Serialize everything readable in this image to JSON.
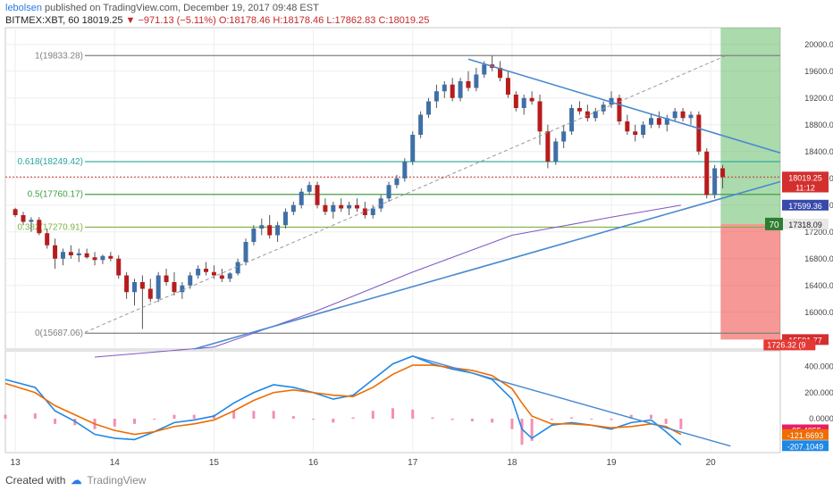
{
  "header": {
    "author": "lebolsen",
    "published": "published on TradingView.com, December 19, 2017 09:48 EST",
    "symbol": "BITMEX:XBT, 60",
    "last": "18019.25",
    "change_arrow": "▼",
    "change": "−971.13 (−5.11%)",
    "open": "O:18178.46",
    "high": "H:18178.46",
    "low": "L:17862.83",
    "close": "C:18019.25"
  },
  "footer": {
    "created_with": "Created with",
    "brand": "TradingView"
  },
  "chart_data": {
    "type": "candlestick",
    "symbol": "BITMEX:XBT",
    "interval": "60",
    "x_tick_labels": [
      "13",
      "14",
      "15",
      "16",
      "17",
      "18",
      "19",
      "20"
    ],
    "y_ticks": [
      20000,
      19600,
      19200,
      18800,
      18400,
      18000,
      17600,
      17200,
      16800,
      16400,
      16000
    ],
    "y_tick_labels": [
      "20000.00",
      "19600.00",
      "19200.00",
      "18800.00",
      "18400.00",
      "18000.00",
      "17600.00",
      "17200.00",
      "16800.00",
      "16400.00",
      "16000.00"
    ],
    "ylim": [
      15450,
      20250
    ],
    "x_range_days": [
      12.9,
      20.7
    ],
    "candles": [
      [
        13.0,
        17540,
        17560,
        17420,
        17450
      ],
      [
        13.08,
        17450,
        17500,
        17300,
        17350
      ],
      [
        13.16,
        17350,
        17420,
        17200,
        17380
      ],
      [
        13.24,
        17380,
        17420,
        17150,
        17180
      ],
      [
        13.32,
        17180,
        17250,
        16950,
        17000
      ],
      [
        13.4,
        17000,
        17100,
        16650,
        16800
      ],
      [
        13.48,
        16800,
        16950,
        16700,
        16900
      ],
      [
        13.56,
        16900,
        17000,
        16800,
        16850
      ],
      [
        13.64,
        16850,
        16950,
        16750,
        16880
      ],
      [
        13.72,
        16880,
        16950,
        16800,
        16820
      ],
      [
        13.8,
        16820,
        16900,
        16700,
        16780
      ],
      [
        13.88,
        16780,
        16860,
        16720,
        16840
      ],
      [
        13.96,
        16840,
        16900,
        16760,
        16800
      ],
      [
        14.04,
        16800,
        16850,
        16500,
        16550
      ],
      [
        14.12,
        16550,
        16600,
        16200,
        16300
      ],
      [
        14.2,
        16300,
        16500,
        16100,
        16450
      ],
      [
        14.28,
        16450,
        16550,
        15750,
        16350
      ],
      [
        14.36,
        16350,
        16500,
        16150,
        16200
      ],
      [
        14.44,
        16200,
        16600,
        16150,
        16550
      ],
      [
        14.52,
        16550,
        16650,
        16400,
        16450
      ],
      [
        14.6,
        16450,
        16600,
        16250,
        16300
      ],
      [
        14.68,
        16300,
        16450,
        16200,
        16400
      ],
      [
        14.76,
        16400,
        16600,
        16350,
        16550
      ],
      [
        14.84,
        16550,
        16700,
        16500,
        16650
      ],
      [
        14.92,
        16650,
        16750,
        16550,
        16600
      ],
      [
        15.0,
        16600,
        16700,
        16500,
        16550
      ],
      [
        15.08,
        16550,
        16650,
        16450,
        16500
      ],
      [
        15.16,
        16500,
        16600,
        16450,
        16580
      ],
      [
        15.24,
        16580,
        16800,
        16550,
        16750
      ],
      [
        15.32,
        16750,
        17100,
        16700,
        17050
      ],
      [
        15.4,
        17050,
        17300,
        17000,
        17250
      ],
      [
        15.48,
        17250,
        17400,
        17150,
        17300
      ],
      [
        15.56,
        17300,
        17450,
        17100,
        17150
      ],
      [
        15.64,
        17150,
        17350,
        17050,
        17300
      ],
      [
        15.72,
        17300,
        17550,
        17250,
        17500
      ],
      [
        15.8,
        17500,
        17650,
        17450,
        17600
      ],
      [
        15.88,
        17600,
        17850,
        17550,
        17800
      ],
      [
        15.96,
        17800,
        17950,
        17750,
        17900
      ],
      [
        16.04,
        17900,
        17950,
        17550,
        17600
      ],
      [
        16.12,
        17600,
        17700,
        17450,
        17500
      ],
      [
        16.2,
        17500,
        17650,
        17400,
        17600
      ],
      [
        16.28,
        17600,
        17700,
        17500,
        17550
      ],
      [
        16.36,
        17550,
        17650,
        17450,
        17600
      ],
      [
        16.44,
        17600,
        17700,
        17500,
        17550
      ],
      [
        16.52,
        17550,
        17650,
        17400,
        17450
      ],
      [
        16.6,
        17450,
        17600,
        17400,
        17550
      ],
      [
        16.68,
        17550,
        17750,
        17500,
        17700
      ],
      [
        16.76,
        17700,
        17950,
        17650,
        17900
      ],
      [
        16.84,
        17900,
        18050,
        17850,
        18000
      ],
      [
        16.92,
        18000,
        18300,
        17950,
        18250
      ],
      [
        17.0,
        18250,
        18700,
        18200,
        18650
      ],
      [
        17.08,
        18650,
        19000,
        18600,
        18950
      ],
      [
        17.16,
        18950,
        19200,
        18900,
        19150
      ],
      [
        17.24,
        19150,
        19400,
        19050,
        19300
      ],
      [
        17.32,
        19300,
        19450,
        19200,
        19400
      ],
      [
        17.4,
        19400,
        19500,
        19150,
        19200
      ],
      [
        17.48,
        19200,
        19500,
        19150,
        19450
      ],
      [
        17.56,
        19450,
        19600,
        19300,
        19350
      ],
      [
        17.64,
        19350,
        19650,
        19300,
        19550
      ],
      [
        17.72,
        19550,
        19750,
        19500,
        19700
      ],
      [
        17.8,
        19700,
        19830,
        19600,
        19650
      ],
      [
        17.88,
        19650,
        19750,
        19450,
        19500
      ],
      [
        17.96,
        19500,
        19600,
        19200,
        19250
      ],
      [
        18.04,
        19250,
        19300,
        19000,
        19050
      ],
      [
        18.12,
        19050,
        19250,
        18950,
        19200
      ],
      [
        18.2,
        19200,
        19300,
        19100,
        19150
      ],
      [
        18.28,
        19150,
        19250,
        18500,
        18700
      ],
      [
        18.36,
        18700,
        18800,
        18150,
        18250
      ],
      [
        18.44,
        18250,
        18600,
        18200,
        18550
      ],
      [
        18.52,
        18550,
        18800,
        18450,
        18700
      ],
      [
        18.6,
        18700,
        19100,
        18650,
        19050
      ],
      [
        18.68,
        19050,
        19150,
        18950,
        19000
      ],
      [
        18.76,
        19000,
        19100,
        18850,
        18900
      ],
      [
        18.84,
        18900,
        19050,
        18850,
        19000
      ],
      [
        18.92,
        19000,
        19150,
        18950,
        19100
      ],
      [
        19.0,
        19100,
        19300,
        19050,
        19200
      ],
      [
        19.08,
        19200,
        19250,
        18800,
        18850
      ],
      [
        19.16,
        18850,
        18950,
        18650,
        18700
      ],
      [
        19.24,
        18700,
        18800,
        18550,
        18650
      ],
      [
        19.32,
        18650,
        18850,
        18600,
        18800
      ],
      [
        19.4,
        18800,
        18950,
        18750,
        18900
      ],
      [
        19.48,
        18900,
        19000,
        18750,
        18800
      ],
      [
        19.56,
        18800,
        18950,
        18700,
        18900
      ],
      [
        19.64,
        18900,
        19050,
        18850,
        19000
      ],
      [
        19.72,
        19000,
        19050,
        18850,
        18900
      ],
      [
        19.8,
        18900,
        19000,
        18800,
        18950
      ],
      [
        19.88,
        18950,
        19000,
        18350,
        18400
      ],
      [
        19.96,
        18400,
        18450,
        17700,
        17750
      ],
      [
        20.04,
        17750,
        18200,
        17700,
        18150
      ],
      [
        20.12,
        18150,
        18200,
        17850,
        18019
      ]
    ],
    "moving_average": [
      [
        13.8,
        15330
      ],
      [
        15.0,
        15480
      ],
      [
        16.0,
        16000
      ],
      [
        17.0,
        16600
      ],
      [
        18.0,
        17150
      ],
      [
        19.0,
        17420
      ],
      [
        19.7,
        17599
      ]
    ],
    "fibonacci": [
      {
        "label": "1(19833.28)",
        "price": 19833.28
      },
      {
        "label": "0.618(18249.42)",
        "price": 18249.42
      },
      {
        "label": "0.5(17760.17)",
        "price": 17760.17
      },
      {
        "label": "0.382(17270.91)",
        "price": 17270.91
      },
      {
        "label": "0(15687.06)",
        "price": 15687.06
      }
    ],
    "trendlines": [
      {
        "name": "descending-resistance",
        "from": [
          17.56,
          19780
        ],
        "to": [
          20.7,
          18380
        ]
      },
      {
        "name": "ascending-support",
        "from": [
          14.8,
          15450
        ],
        "to": [
          20.7,
          17950
        ]
      },
      {
        "name": "channel-dashed",
        "from": [
          13.7,
          15700
        ],
        "to": [
          20.15,
          19830
        ]
      }
    ],
    "position_box": {
      "start": 20.1,
      "end": 20.7,
      "entry": 17318.09,
      "target": 20250,
      "stop": 15591.77
    },
    "price_labels": [
      {
        "text": "18019.25",
        "price": 18019.25,
        "color": "#d32f2f"
      },
      {
        "text": "11:12",
        "price": 17870,
        "color": "#d32f2f"
      },
      {
        "text": "17599.36",
        "price": 17599.36,
        "color": "#3949ab"
      },
      {
        "text": "17318.09",
        "price": 17318.09,
        "color": "#e8e8e8"
      },
      {
        "text": "15591.77",
        "price": 15591.77,
        "color": "#d32f2f"
      }
    ],
    "entry_tag": "70",
    "stop_tag": "1726.32 (9",
    "current_price": 18019.25,
    "macd": {
      "y_ticks": [
        400,
        200,
        0
      ],
      "y_tick_labels": [
        "400.0000",
        "200.0000",
        "0.0000"
      ],
      "ylim": [
        -260,
        520
      ],
      "macd_line": [
        [
          12.9,
          300
        ],
        [
          13.2,
          240
        ],
        [
          13.4,
          60
        ],
        [
          13.6,
          -20
        ],
        [
          13.8,
          -120
        ],
        [
          14.0,
          -150
        ],
        [
          14.2,
          -160
        ],
        [
          14.4,
          -100
        ],
        [
          14.6,
          -30
        ],
        [
          14.8,
          -10
        ],
        [
          15.0,
          20
        ],
        [
          15.2,
          120
        ],
        [
          15.4,
          200
        ],
        [
          15.6,
          260
        ],
        [
          15.8,
          240
        ],
        [
          16.0,
          200
        ],
        [
          16.2,
          150
        ],
        [
          16.4,
          180
        ],
        [
          16.6,
          300
        ],
        [
          16.8,
          420
        ],
        [
          17.0,
          480
        ],
        [
          17.2,
          420
        ],
        [
          17.4,
          380
        ],
        [
          17.6,
          350
        ],
        [
          17.8,
          300
        ],
        [
          18.0,
          150
        ],
        [
          18.1,
          -80
        ],
        [
          18.2,
          -150
        ],
        [
          18.4,
          -50
        ],
        [
          18.6,
          -30
        ],
        [
          18.8,
          -50
        ],
        [
          19.0,
          -80
        ],
        [
          19.2,
          -30
        ],
        [
          19.4,
          -10
        ],
        [
          19.55,
          -100
        ],
        [
          19.7,
          -200
        ]
      ],
      "signal_line": [
        [
          12.9,
          270
        ],
        [
          13.2,
          200
        ],
        [
          13.4,
          100
        ],
        [
          13.6,
          30
        ],
        [
          13.8,
          -40
        ],
        [
          14.0,
          -90
        ],
        [
          14.2,
          -120
        ],
        [
          14.4,
          -100
        ],
        [
          14.6,
          -60
        ],
        [
          14.8,
          -40
        ],
        [
          15.0,
          -10
        ],
        [
          15.2,
          60
        ],
        [
          15.4,
          140
        ],
        [
          15.6,
          200
        ],
        [
          15.8,
          220
        ],
        [
          16.0,
          200
        ],
        [
          16.2,
          180
        ],
        [
          16.4,
          170
        ],
        [
          16.6,
          240
        ],
        [
          16.8,
          340
        ],
        [
          17.0,
          410
        ],
        [
          17.2,
          410
        ],
        [
          17.4,
          390
        ],
        [
          17.6,
          370
        ],
        [
          17.8,
          330
        ],
        [
          18.0,
          230
        ],
        [
          18.1,
          120
        ],
        [
          18.2,
          20
        ],
        [
          18.4,
          -40
        ],
        [
          18.6,
          -40
        ],
        [
          18.8,
          -50
        ],
        [
          19.0,
          -70
        ],
        [
          19.2,
          -60
        ],
        [
          19.4,
          -40
        ],
        [
          19.55,
          -60
        ],
        [
          19.7,
          -120
        ]
      ],
      "trendline": {
        "from": [
          17.0,
          480
        ],
        "to": [
          20.2,
          -210
        ]
      },
      "value_labels": [
        {
          "text": "-85.4355",
          "value": -85.4355,
          "color": "#e91e63"
        },
        {
          "text": "-121.6693",
          "value": -121.6693,
          "color": "#ef6c00"
        },
        {
          "text": "-207.1049",
          "value": -207.1049,
          "color": "#1e88e5"
        }
      ]
    }
  }
}
